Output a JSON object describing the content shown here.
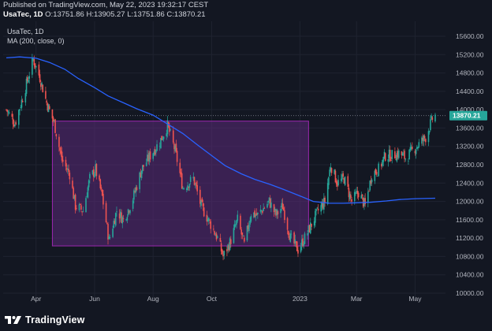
{
  "header": {
    "published": "Published on TradingView.com, May 22, 2023 19:32:17 CEST",
    "symbol": "UsaTec, 1D",
    "o_label": "O:",
    "o_value": "13751.86",
    "h_label": "H:",
    "h_value": "13905.27",
    "l_label": "L:",
    "l_value": "13751.86",
    "c_label": "C:",
    "c_value": "13870.21"
  },
  "legend": {
    "series_name": "UsaTec, 1D",
    "indicator": "MA (200, close, 0)"
  },
  "footer": {
    "brand": "TradingView"
  },
  "colors": {
    "background": "#131722",
    "up": "#26a69a",
    "down": "#ef5350",
    "ma": "#2962ff",
    "box_fill": "#5b2a7a",
    "box_border": "#9c27b0",
    "price_tag": "#26a69a"
  },
  "chart_data": {
    "type": "candlestick",
    "current_price": "13870.21",
    "ylim": [
      10000,
      15800
    ],
    "y_ticks": [
      "15600.00",
      "15200.00",
      "14800.00",
      "14400.00",
      "14000.00",
      "13600.00",
      "13200.00",
      "12800.00",
      "12400.00",
      "12000.00",
      "11600.00",
      "11200.00",
      "10800.00",
      "10400.00",
      "10000.00"
    ],
    "x_ticks": [
      "Apr",
      "Jun",
      "Aug",
      "Oct",
      "2023",
      "Mar",
      "May"
    ],
    "ma_200": [
      [
        "2022-03-01",
        15130
      ],
      [
        "2022-03-15",
        15150
      ],
      [
        "2022-04-01",
        15120
      ],
      [
        "2022-04-15",
        15030
      ],
      [
        "2022-05-01",
        14880
      ],
      [
        "2022-05-15",
        14680
      ],
      [
        "2022-06-01",
        14480
      ],
      [
        "2022-06-15",
        14300
      ],
      [
        "2022-07-01",
        14150
      ],
      [
        "2022-07-15",
        14020
      ],
      [
        "2022-08-01",
        13880
      ],
      [
        "2022-08-15",
        13700
      ],
      [
        "2022-09-01",
        13480
      ],
      [
        "2022-09-15",
        13250
      ],
      [
        "2022-10-01",
        13000
      ],
      [
        "2022-10-15",
        12780
      ],
      [
        "2022-11-01",
        12600
      ],
      [
        "2022-11-15",
        12480
      ],
      [
        "2022-12-01",
        12370
      ],
      [
        "2022-12-15",
        12260
      ],
      [
        "2023-01-01",
        12120
      ],
      [
        "2023-01-15",
        12000
      ],
      [
        "2023-02-01",
        11960
      ],
      [
        "2023-02-15",
        11960
      ],
      [
        "2023-03-01",
        11970
      ],
      [
        "2023-03-15",
        11980
      ],
      [
        "2023-04-01",
        12010
      ],
      [
        "2023-04-15",
        12040
      ],
      [
        "2023-05-01",
        12060
      ],
      [
        "2023-05-22",
        12070
      ]
    ],
    "close_path": [
      [
        "2022-03-01",
        14000
      ],
      [
        "2022-03-10",
        13700
      ],
      [
        "2022-03-20",
        14400
      ],
      [
        "2022-03-29",
        15100
      ],
      [
        "2022-04-05",
        14700
      ],
      [
        "2022-04-12",
        14150
      ],
      [
        "2022-04-20",
        13700
      ],
      [
        "2022-04-28",
        12900
      ],
      [
        "2022-05-06",
        12600
      ],
      [
        "2022-05-12",
        11900
      ],
      [
        "2022-05-20",
        11800
      ],
      [
        "2022-05-27",
        12500
      ],
      [
        "2022-06-02",
        12700
      ],
      [
        "2022-06-09",
        12100
      ],
      [
        "2022-06-16",
        11150
      ],
      [
        "2022-06-24",
        11800
      ],
      [
        "2022-07-01",
        11600
      ],
      [
        "2022-07-10",
        12000
      ],
      [
        "2022-07-20",
        12700
      ],
      [
        "2022-07-29",
        13000
      ],
      [
        "2022-08-08",
        13300
      ],
      [
        "2022-08-16",
        13650
      ],
      [
        "2022-08-24",
        13100
      ],
      [
        "2022-09-01",
        12300
      ],
      [
        "2022-09-12",
        12500
      ],
      [
        "2022-09-20",
        11900
      ],
      [
        "2022-09-30",
        11500
      ],
      [
        "2022-10-07",
        11200
      ],
      [
        "2022-10-13",
        10800
      ],
      [
        "2022-10-20",
        11100
      ],
      [
        "2022-10-28",
        11600
      ],
      [
        "2022-11-04",
        11050
      ],
      [
        "2022-11-11",
        11750
      ],
      [
        "2022-11-18",
        11700
      ],
      [
        "2022-11-30",
        12000
      ],
      [
        "2022-12-07",
        11700
      ],
      [
        "2022-12-14",
        11900
      ],
      [
        "2022-12-22",
        11200
      ],
      [
        "2022-12-30",
        10950
      ],
      [
        "2023-01-06",
        11200
      ],
      [
        "2023-01-13",
        11500
      ],
      [
        "2023-01-20",
        11800
      ],
      [
        "2023-01-27",
        12000
      ],
      [
        "2023-02-02",
        12800
      ],
      [
        "2023-02-09",
        12400
      ],
      [
        "2023-02-16",
        12500
      ],
      [
        "2023-02-24",
        12000
      ],
      [
        "2023-03-03",
        12200
      ],
      [
        "2023-03-10",
        11900
      ],
      [
        "2023-03-17",
        12600
      ],
      [
        "2023-03-24",
        12700
      ],
      [
        "2023-03-31",
        13000
      ],
      [
        "2023-04-07",
        13000
      ],
      [
        "2023-04-14",
        13050
      ],
      [
        "2023-04-21",
        12950
      ],
      [
        "2023-04-28",
        13100
      ],
      [
        "2023-05-05",
        13250
      ],
      [
        "2023-05-12",
        13400
      ],
      [
        "2023-05-19",
        13800
      ],
      [
        "2023-05-22",
        13870
      ]
    ],
    "box": {
      "from": "2022-04-18",
      "to": "2023-01-10",
      "top": 13750,
      "bottom": 11030
    }
  }
}
